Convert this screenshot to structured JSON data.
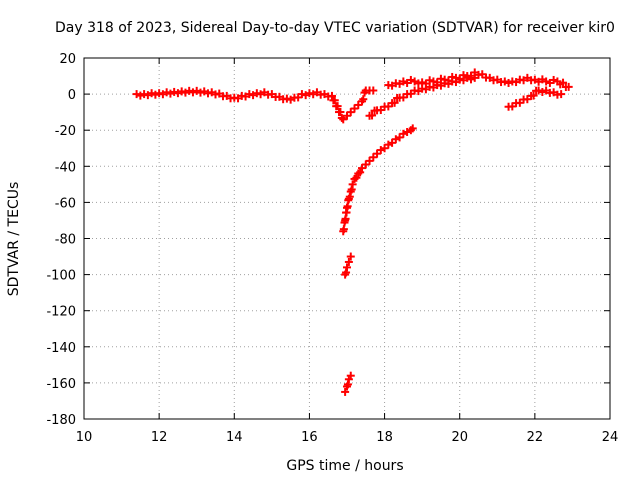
{
  "chart_data": {
    "type": "scatter",
    "title": "Day 318 of 2023, Sidereal Day-to-day VTEC variation (SDTVAR) for receiver kir0",
    "xlabel": "GPS time / hours",
    "ylabel": "SDTVAR / TECUs",
    "xlim": [
      10,
      24
    ],
    "ylim": [
      -180,
      20
    ],
    "xticks": [
      10,
      12,
      14,
      16,
      18,
      20,
      22,
      24
    ],
    "yticks": [
      20,
      0,
      -20,
      -40,
      -60,
      -80,
      -100,
      -120,
      -140,
      -160,
      -180
    ],
    "grid": true,
    "marker": "+",
    "color": "#ff0000",
    "series": [
      {
        "points": [
          [
            11.4,
            0
          ],
          [
            11.6,
            0
          ],
          [
            11.8,
            0.5
          ],
          [
            12.0,
            0.5
          ],
          [
            12.2,
            1
          ],
          [
            12.4,
            1.2
          ],
          [
            12.6,
            1.5
          ],
          [
            12.8,
            1.8
          ],
          [
            13.0,
            1.8
          ],
          [
            13.2,
            1.5
          ],
          [
            13.4,
            1
          ],
          [
            13.6,
            0.3
          ],
          [
            13.8,
            -1
          ],
          [
            14.0,
            -2
          ],
          [
            14.2,
            -1
          ],
          [
            14.4,
            0
          ],
          [
            14.6,
            0.5
          ],
          [
            14.8,
            1
          ],
          [
            15.0,
            0
          ],
          [
            15.2,
            -1.5
          ],
          [
            15.4,
            -2.5
          ],
          [
            15.6,
            -2
          ],
          [
            15.8,
            0
          ],
          [
            16.0,
            0.5
          ],
          [
            16.2,
            1
          ],
          [
            16.4,
            0
          ],
          [
            16.6,
            -1
          ],
          [
            16.9,
            -14
          ],
          [
            17.0,
            -12
          ],
          [
            17.1,
            -10
          ],
          [
            17.2,
            -8
          ],
          [
            17.3,
            -6
          ],
          [
            17.4,
            -4
          ],
          [
            17.5,
            2
          ],
          [
            17.6,
            2
          ],
          [
            17.7,
            2
          ],
          [
            17.6,
            -12
          ],
          [
            17.8,
            -9
          ],
          [
            18.0,
            -7
          ],
          [
            18.2,
            -5
          ],
          [
            18.4,
            -2
          ],
          [
            18.6,
            0
          ],
          [
            18.8,
            2
          ],
          [
            19.0,
            3
          ],
          [
            19.2,
            4
          ],
          [
            19.4,
            5
          ],
          [
            19.6,
            6
          ],
          [
            19.8,
            7
          ],
          [
            20.0,
            8
          ],
          [
            20.2,
            9
          ],
          [
            20.4,
            9
          ],
          [
            18.1,
            5
          ],
          [
            18.3,
            6
          ],
          [
            18.5,
            7
          ],
          [
            18.8,
            7
          ],
          [
            19.0,
            6.5
          ],
          [
            19.3,
            7
          ],
          [
            19.6,
            8
          ],
          [
            19.9,
            9
          ],
          [
            20.2,
            10
          ],
          [
            20.4,
            12
          ],
          [
            20.6,
            11
          ],
          [
            20.8,
            9
          ],
          [
            21.0,
            8
          ],
          [
            21.2,
            7
          ],
          [
            21.4,
            7
          ],
          [
            21.6,
            8
          ],
          [
            21.8,
            9
          ],
          [
            22.0,
            8
          ],
          [
            22.3,
            7
          ],
          [
            22.6,
            7
          ],
          [
            22.9,
            4
          ],
          [
            21.3,
            -7
          ],
          [
            21.5,
            -5
          ],
          [
            21.7,
            -3
          ],
          [
            21.9,
            -1
          ],
          [
            22.1,
            2
          ],
          [
            22.3,
            2
          ],
          [
            22.5,
            1
          ],
          [
            22.7,
            0
          ],
          [
            16.9,
            -76
          ],
          [
            16.95,
            -70
          ],
          [
            17.0,
            -63
          ],
          [
            17.05,
            -58
          ],
          [
            17.1,
            -54
          ],
          [
            17.15,
            -50
          ],
          [
            17.2,
            -47
          ],
          [
            17.3,
            -44
          ],
          [
            17.4,
            -41
          ],
          [
            17.5,
            -39
          ],
          [
            17.6,
            -37
          ],
          [
            17.7,
            -35
          ],
          [
            17.8,
            -33
          ],
          [
            17.9,
            -31
          ],
          [
            18.0,
            -30
          ],
          [
            18.1,
            -28
          ],
          [
            18.2,
            -27
          ],
          [
            18.3,
            -25
          ],
          [
            18.4,
            -24
          ],
          [
            18.5,
            -22
          ],
          [
            18.6,
            -21
          ],
          [
            18.7,
            -20
          ],
          [
            18.75,
            -19
          ],
          [
            16.95,
            -100
          ],
          [
            17.0,
            -96
          ],
          [
            17.05,
            -93
          ],
          [
            17.1,
            -90
          ],
          [
            16.95,
            -165
          ],
          [
            17.0,
            -162
          ],
          [
            17.05,
            -158
          ],
          [
            17.1,
            -156
          ]
        ]
      }
    ]
  }
}
